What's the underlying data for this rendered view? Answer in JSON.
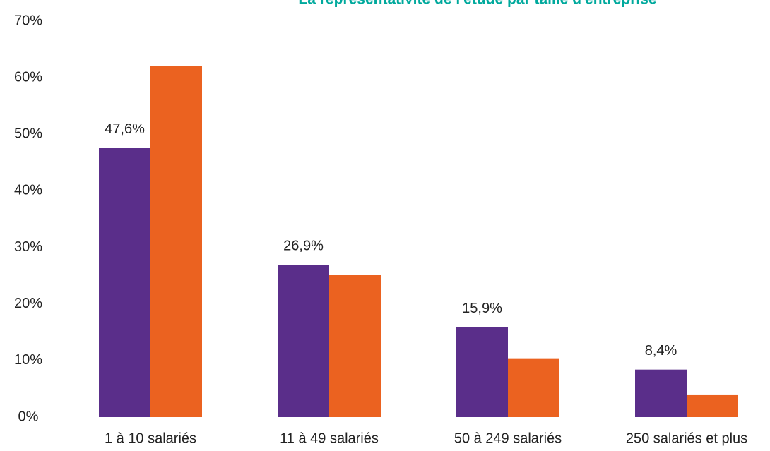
{
  "chart_data": {
    "type": "bar",
    "title": "La représentativité de l'étude par taille d'entreprise",
    "categories": [
      "1 à 10 salariés",
      "11 à 49 salariés",
      "50 à 249 salariés",
      "250 salariés et plus"
    ],
    "series": [
      {
        "color": "#5a2e8a",
        "values": [
          47.6,
          26.9,
          15.9,
          8.4
        ],
        "value_labels": [
          "47,6%",
          "26,9%",
          "15,9%",
          "8,4%"
        ]
      },
      {
        "color": "#eb6220",
        "values": [
          62.1,
          25.2,
          10.4,
          4.0
        ]
      }
    ],
    "ylim": [
      0,
      70
    ],
    "yticks": [
      {
        "value": 0,
        "label": "0%"
      },
      {
        "value": 10,
        "label": "10%"
      },
      {
        "value": 20,
        "label": "20%"
      },
      {
        "value": 30,
        "label": "30%"
      },
      {
        "value": 40,
        "label": "40%"
      },
      {
        "value": 50,
        "label": "50%"
      },
      {
        "value": 60,
        "label": "60%"
      },
      {
        "value": 70,
        "label": "70%"
      }
    ],
    "grid": false
  }
}
